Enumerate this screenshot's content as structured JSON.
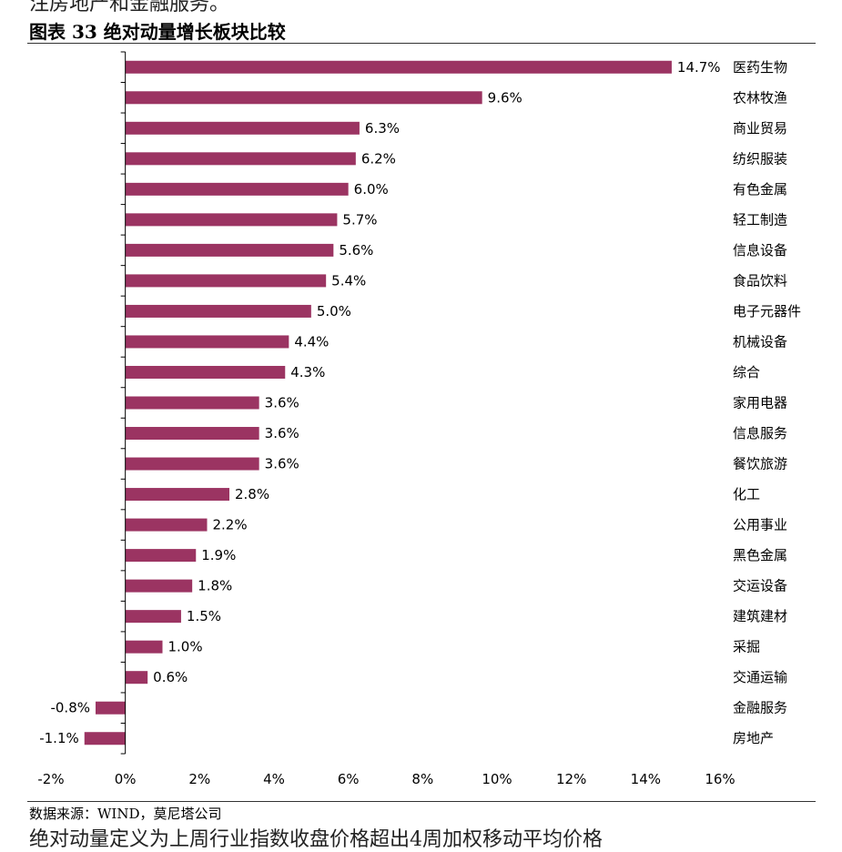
{
  "page": {
    "top_text": "注房地产和金融服务。",
    "figure_title": "图表 33 绝对动量增长板块比较",
    "source": "数据来源：WIND，莫尼塔公司",
    "bottom_text": "绝对动量定义为上周行业指数收盘价格超出4周加权移动平均价格"
  },
  "chart_data": {
    "type": "bar",
    "orientation": "horizontal",
    "bar_color": "#9B3462",
    "categories": [
      "医药生物",
      "农林牧渔",
      "商业贸易",
      "纺织服装",
      "有色金属",
      "轻工制造",
      "信息设备",
      "食品饮料",
      "电子元器件",
      "机械设备",
      "综合",
      "家用电器",
      "信息服务",
      "餐饮旅游",
      "化工",
      "公用事业",
      "黑色金属",
      "交运设备",
      "建筑建材",
      "采掘",
      "交通运输",
      "金融服务",
      "房地产"
    ],
    "values": [
      14.7,
      9.6,
      6.3,
      6.2,
      6.0,
      5.7,
      5.6,
      5.4,
      5.0,
      4.4,
      4.3,
      3.6,
      3.6,
      3.6,
      2.8,
      2.2,
      1.9,
      1.8,
      1.5,
      1.0,
      0.6,
      -0.8,
      -1.1
    ],
    "value_labels": [
      "14.7%",
      "9.6%",
      "6.3%",
      "6.2%",
      "6.0%",
      "5.7%",
      "5.6%",
      "5.4%",
      "5.0%",
      "4.4%",
      "4.3%",
      "3.6%",
      "3.6%",
      "3.6%",
      "2.8%",
      "2.2%",
      "1.9%",
      "1.8%",
      "1.5%",
      "1.0%",
      "0.6%",
      "-0.8%",
      "-1.1%"
    ],
    "x_ticks": [
      -2,
      0,
      2,
      4,
      6,
      8,
      10,
      12,
      14,
      16
    ],
    "x_tick_labels": [
      "-2%",
      "0%",
      "2%",
      "4%",
      "6%",
      "8%",
      "10%",
      "12%",
      "14%",
      "16%"
    ],
    "xlim": [
      -2,
      16
    ],
    "grid": false,
    "legend": "none"
  }
}
